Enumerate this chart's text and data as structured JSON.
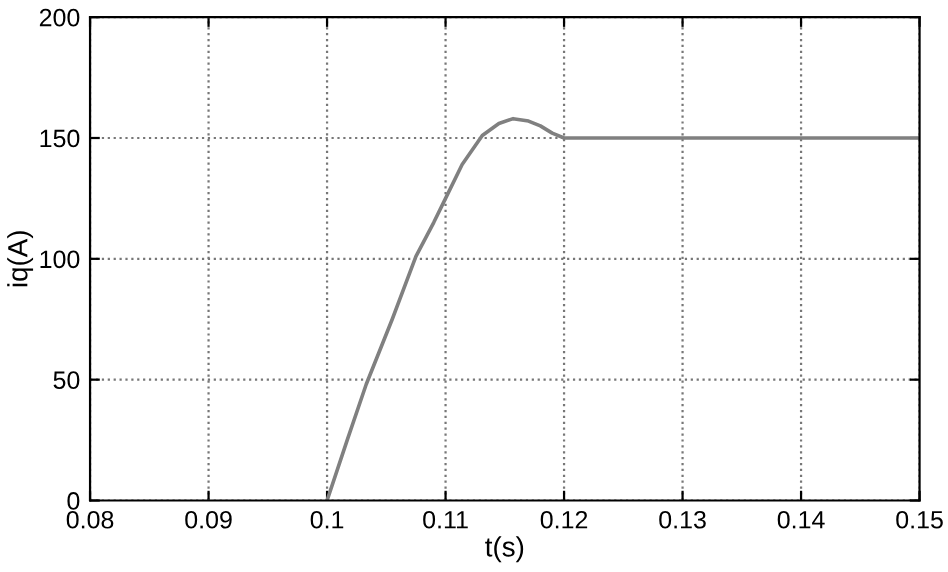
{
  "chart_data": {
    "type": "line",
    "xlabel": "t(s)",
    "ylabel": "iq(A)",
    "series": [
      {
        "color": "#808080",
        "x": [
          0.1,
          0.1017,
          0.1033,
          0.1055,
          0.1075,
          0.109,
          0.11,
          0.1114,
          0.1131,
          0.1145,
          0.1157,
          0.117,
          0.118,
          0.119,
          0.12,
          0.13,
          0.14,
          0.15
        ],
        "values": [
          0,
          25,
          48,
          75,
          101,
          115,
          125,
          139,
          151,
          156,
          158,
          157,
          155,
          152,
          150,
          150,
          150,
          150
        ]
      }
    ],
    "xlim": [
      0.08,
      0.15
    ],
    "xticks": [
      0.08,
      0.09,
      0.1,
      0.11,
      0.12,
      0.13,
      0.14,
      0.15
    ],
    "ylim": [
      0,
      200
    ],
    "yticks": [
      0,
      50,
      100,
      150,
      200
    ],
    "grid": true,
    "line_style": "solid",
    "marker": "none"
  }
}
